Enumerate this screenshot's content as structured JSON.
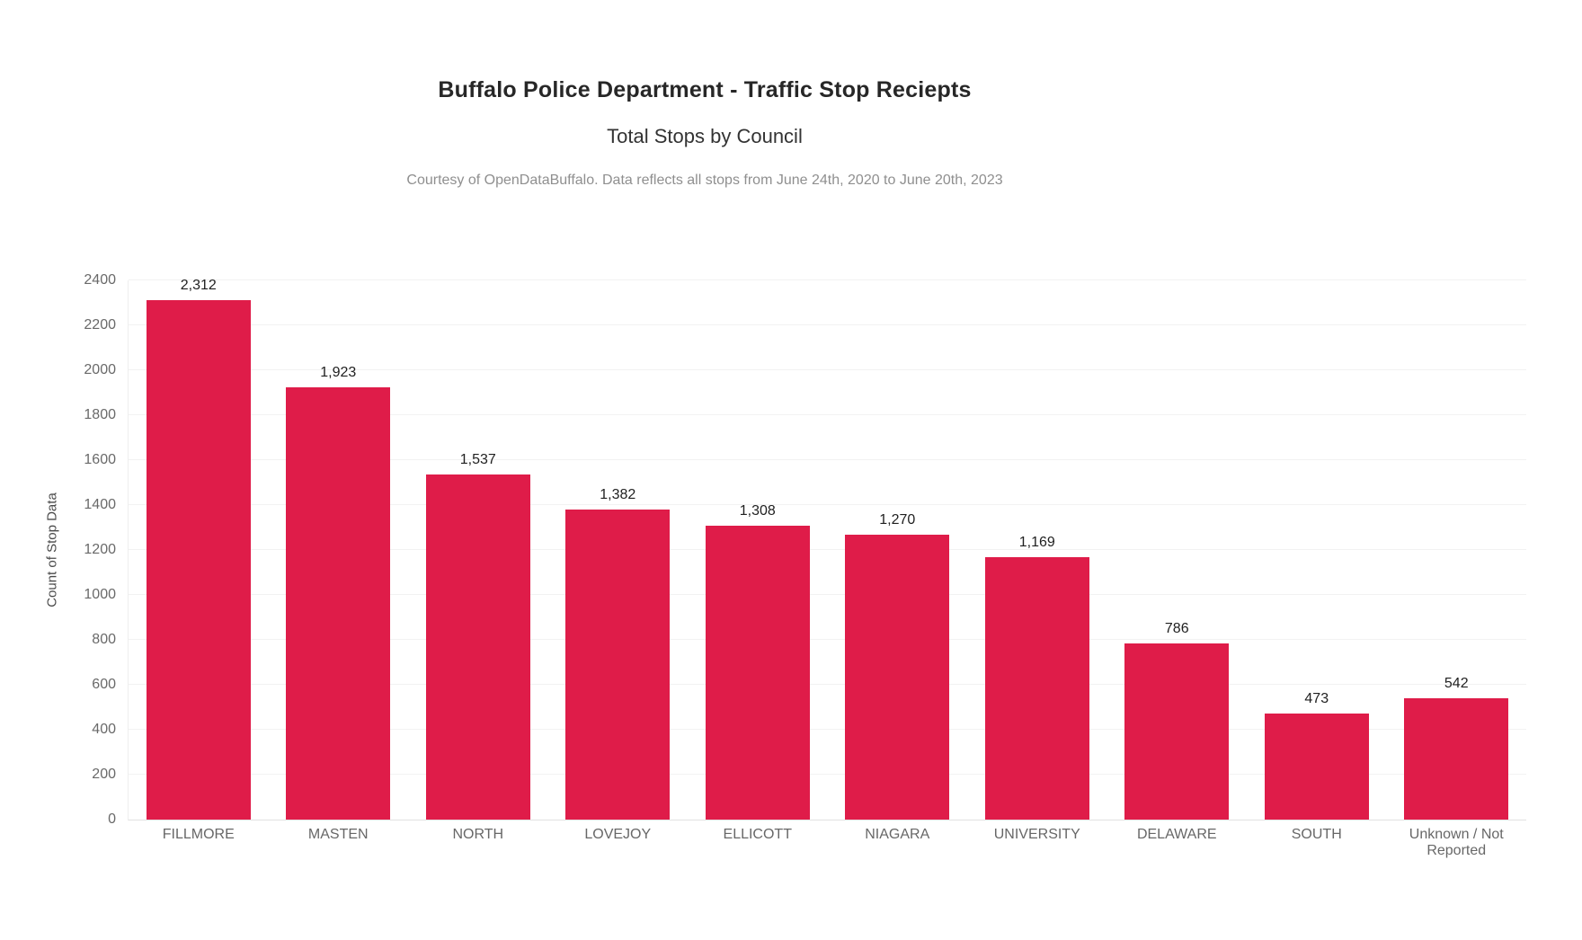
{
  "chart_data": {
    "type": "bar",
    "title": "Buffalo Police Department - Traffic Stop Reciepts",
    "subtitle": "Total Stops by Council",
    "caption": "Courtesy of OpenDataBuffalo. Data reflects all stops from June 24th, 2020 to June 20th, 2023",
    "ylabel": "Count of Stop Data",
    "xlabel": "",
    "categories": [
      "FILLMORE",
      "MASTEN",
      "NORTH",
      "LOVEJOY",
      "ELLICOTT",
      "NIAGARA",
      "UNIVERSITY",
      "DELAWARE",
      "SOUTH",
      "Unknown / Not Reported"
    ],
    "values": [
      2312,
      1923,
      1537,
      1382,
      1308,
      1270,
      1169,
      786,
      473,
      542
    ],
    "value_labels": [
      "2,312",
      "1,923",
      "1,537",
      "1,382",
      "1,308",
      "1,270",
      "1,169",
      "786",
      "473",
      "542"
    ],
    "ylim": [
      0,
      2400
    ],
    "ytick_step": 200,
    "grid": true,
    "legend_position": "none"
  },
  "colors": {
    "bar": "#DF1C49",
    "gridline": "#f2f2f2",
    "axis_line": "#e2e2e2",
    "tick_text": "#696969",
    "value_text": "#1f1f1f",
    "title_text": "#272727",
    "caption_text": "#8f8f8f"
  }
}
